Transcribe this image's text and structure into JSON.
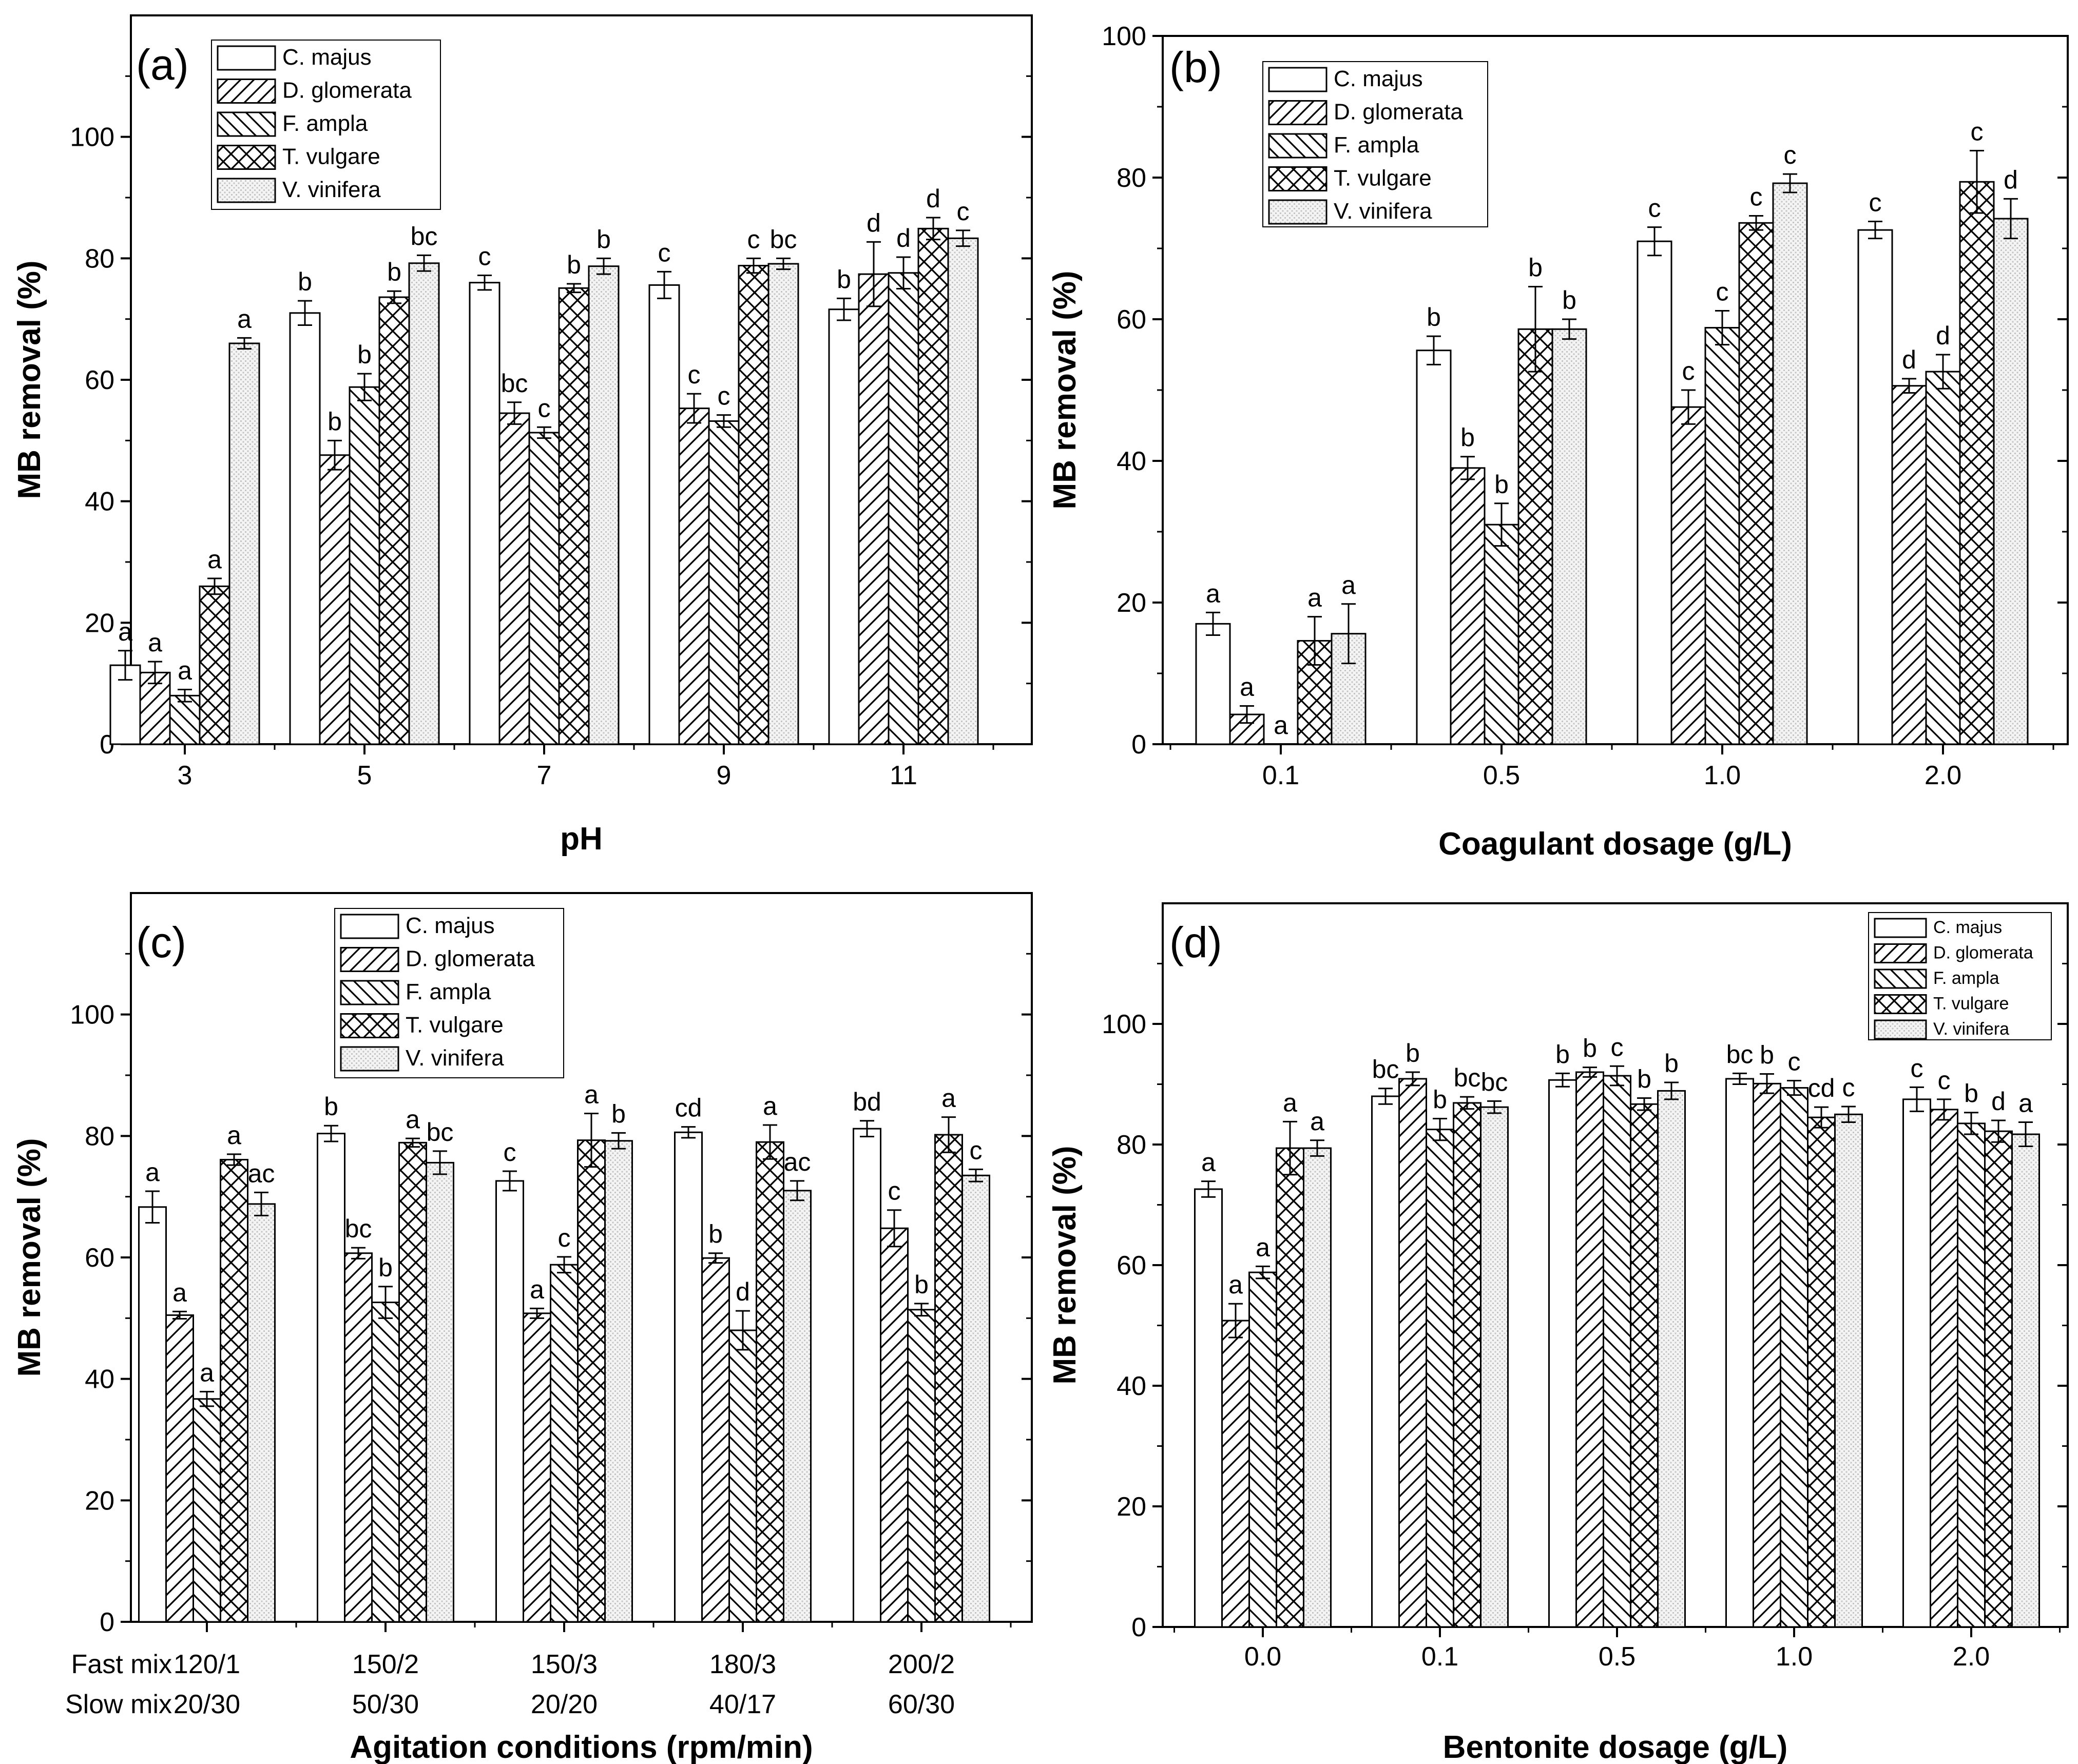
{
  "fills": {
    "C. majus": "empty",
    "D. glomerata": "hatch-forward",
    "F. ampla": "hatch-back",
    "T. vulgare": "crosshatch",
    "V. vinifera": "dotted"
  },
  "chart_data": [
    {
      "type": "bar",
      "panel_label": "(a)",
      "xlabel": "pH",
      "ylabel": "MB removal (%)",
      "ylim": [
        0,
        120
      ],
      "yticks": [
        0,
        20,
        40,
        60,
        80,
        100
      ],
      "categories": [
        "3",
        "5",
        "7",
        "9",
        "11"
      ],
      "legend": [
        "C. majus",
        "D. glomerata",
        "F. ampla",
        "T. vulgare",
        "V. vinifera"
      ],
      "series": [
        {
          "name": "C. majus",
          "values": [
            13,
            71,
            76,
            75.6,
            71.6
          ],
          "errors": [
            2.4,
            2.0,
            1.2,
            2.2,
            1.8
          ],
          "labels": [
            "a",
            "b",
            "c",
            "c",
            "b"
          ]
        },
        {
          "name": "D. glomerata",
          "values": [
            11.8,
            47.6,
            54.5,
            55.3,
            77.4
          ],
          "errors": [
            1.8,
            2.4,
            1.8,
            2.4,
            5.3
          ],
          "labels": [
            "a",
            "b",
            "bc",
            "c",
            "d"
          ]
        },
        {
          "name": "F. ampla",
          "values": [
            8,
            58.8,
            51.3,
            53.2,
            77.6
          ],
          "errors": [
            1.0,
            2.2,
            0.9,
            1.0,
            2.6
          ],
          "labels": [
            "a",
            "b",
            "c",
            "c",
            "d"
          ]
        },
        {
          "name": "T. vulgare",
          "values": [
            26,
            73.6,
            75.1,
            78.8,
            84.9
          ],
          "errors": [
            1.3,
            1.0,
            0.7,
            1.2,
            1.8
          ],
          "labels": [
            "a",
            "b",
            "b",
            "c",
            "d"
          ]
        },
        {
          "name": "V. vinifera",
          "values": [
            66,
            79.2,
            78.7,
            79.1,
            83.3
          ],
          "errors": [
            0.9,
            1.3,
            1.3,
            0.9,
            1.3
          ],
          "labels": [
            "a",
            "bc",
            "b",
            "bc",
            "c"
          ]
        }
      ]
    },
    {
      "type": "bar",
      "panel_label": "(b)",
      "xlabel": "Coagulant dosage (g/L)",
      "ylabel": "MB removal (%)",
      "ylim": [
        0,
        100
      ],
      "yticks": [
        0,
        20,
        40,
        60,
        80,
        100
      ],
      "categories": [
        "0.1",
        "0.5",
        "1.0",
        "2.0"
      ],
      "legend": [
        "C. majus",
        "D. glomerata",
        "F. ampla",
        "T. vulgare",
        "V. vinifera"
      ],
      "series": [
        {
          "name": "C. majus",
          "values": [
            17,
            55.6,
            71,
            72.6
          ],
          "errors": [
            1.6,
            2.0,
            2.0,
            1.2
          ],
          "labels": [
            "a",
            "b",
            "c",
            "c"
          ]
        },
        {
          "name": "D. glomerata",
          "values": [
            4.2,
            39,
            47.6,
            50.6
          ],
          "errors": [
            1.2,
            1.6,
            2.4,
            1.0
          ],
          "labels": [
            "a",
            "b",
            "c",
            "d"
          ]
        },
        {
          "name": "F. ampla",
          "values": [
            0,
            31,
            58.8,
            52.6
          ],
          "errors": [
            0,
            3.0,
            2.4,
            2.4
          ],
          "labels": [
            "a",
            "b",
            "c",
            "d"
          ]
        },
        {
          "name": "T. vulgare",
          "values": [
            14.6,
            58.6,
            73.6,
            79.4
          ],
          "errors": [
            3.4,
            6.0,
            1.0,
            4.4
          ],
          "labels": [
            "a",
            "b",
            "c",
            "c"
          ]
        },
        {
          "name": "V. vinifera",
          "values": [
            15.6,
            58.6,
            79.2,
            74.2
          ],
          "errors": [
            4.2,
            1.4,
            1.3,
            2.8
          ],
          "labels": [
            "a",
            "b",
            "c",
            "d"
          ]
        }
      ]
    },
    {
      "type": "bar",
      "panel_label": "(c)",
      "xlabel": "Agitation conditions (rpm/min)",
      "ylabel": "MB removal (%)",
      "ylim": [
        0,
        120
      ],
      "yticks": [
        0,
        20,
        40,
        60,
        80,
        100
      ],
      "row_labels": [
        "Fast mix",
        "Slow mix"
      ],
      "categories": [
        "120/1",
        "150/2",
        "150/3",
        "180/3",
        "200/2"
      ],
      "categories_line2": [
        "20/30",
        "50/30",
        "20/20",
        "40/17",
        "60/30"
      ],
      "legend": [
        "C. majus",
        "D. glomerata",
        "F. ampla",
        "T. vulgare",
        "V. vinifera"
      ],
      "series": [
        {
          "name": "C. majus",
          "values": [
            68.3,
            80.4,
            72.6,
            80.6,
            81.2
          ],
          "errors": [
            2.6,
            1.3,
            1.6,
            0.9,
            1.3
          ],
          "labels": [
            "a",
            "b",
            "c",
            "cd",
            "bd"
          ]
        },
        {
          "name": "D. glomerata",
          "values": [
            50.5,
            60.7,
            50.8,
            59.9,
            64.8
          ],
          "errors": [
            0.6,
            0.9,
            0.8,
            0.8,
            3.0
          ],
          "labels": [
            "a",
            "bc",
            "a",
            "b",
            "c"
          ]
        },
        {
          "name": "F. ampla",
          "values": [
            36.7,
            52.6,
            58.8,
            48,
            51.4
          ],
          "errors": [
            1.2,
            2.6,
            1.3,
            3.2,
            1.0
          ],
          "labels": [
            "a",
            "b",
            "c",
            "d",
            "b"
          ]
        },
        {
          "name": "T. vulgare",
          "values": [
            76.1,
            78.9,
            79.3,
            79,
            80.2
          ],
          "errors": [
            0.9,
            0.7,
            4.4,
            2.8,
            2.9
          ],
          "labels": [
            "a",
            "a",
            "a",
            "a",
            "a"
          ]
        },
        {
          "name": "V. vinifera",
          "values": [
            68.8,
            75.6,
            79.2,
            71,
            73.5
          ],
          "errors": [
            1.9,
            1.9,
            1.3,
            1.6,
            1.0
          ],
          "labels": [
            "ac",
            "bc",
            "b",
            "ac",
            "c"
          ]
        }
      ]
    },
    {
      "type": "bar",
      "panel_label": "(d)",
      "xlabel": "Bentonite dosage (g/L)",
      "ylabel": "MB removal (%)",
      "ylim": [
        0,
        120
      ],
      "yticks": [
        0,
        20,
        40,
        60,
        80,
        100
      ],
      "categories": [
        "0.0",
        "0.1",
        "0.5",
        "1.0",
        "2.0"
      ],
      "legend": [
        "C. majus",
        "D. glomerata",
        "F. ampla",
        "T. vulgare",
        "V. vinifera"
      ],
      "series": [
        {
          "name": "C. majus",
          "values": [
            72.6,
            88,
            90.7,
            90.9,
            87.5
          ],
          "errors": [
            1.3,
            1.3,
            1.1,
            0.9,
            2.0
          ],
          "labels": [
            "a",
            "bc",
            "b",
            "bc",
            "c"
          ]
        },
        {
          "name": "D. glomerata",
          "values": [
            50.8,
            90.9,
            92,
            90.1,
            85.8
          ],
          "errors": [
            2.8,
            1.1,
            0.8,
            1.6,
            1.7
          ],
          "labels": [
            "a",
            "b",
            "b",
            "b",
            "c"
          ]
        },
        {
          "name": "F. ampla",
          "values": [
            58.8,
            82.5,
            91.4,
            89.4,
            83.5
          ],
          "errors": [
            1.0,
            1.8,
            1.6,
            1.2,
            1.8
          ],
          "labels": [
            "a",
            "b",
            "c",
            "c",
            "b"
          ]
        },
        {
          "name": "T. vulgare",
          "values": [
            79.4,
            86.9,
            86.7,
            84.5,
            82.2
          ],
          "errors": [
            4.4,
            1.0,
            1.0,
            1.7,
            1.8
          ],
          "labels": [
            "a",
            "bc",
            "b",
            "cd",
            "d"
          ]
        },
        {
          "name": "V. vinifera",
          "values": [
            79.4,
            86.2,
            88.9,
            85,
            81.7
          ],
          "errors": [
            1.3,
            1.0,
            1.4,
            1.3,
            2.0
          ],
          "labels": [
            "a",
            "bc",
            "b",
            "c",
            "a"
          ]
        }
      ]
    }
  ]
}
